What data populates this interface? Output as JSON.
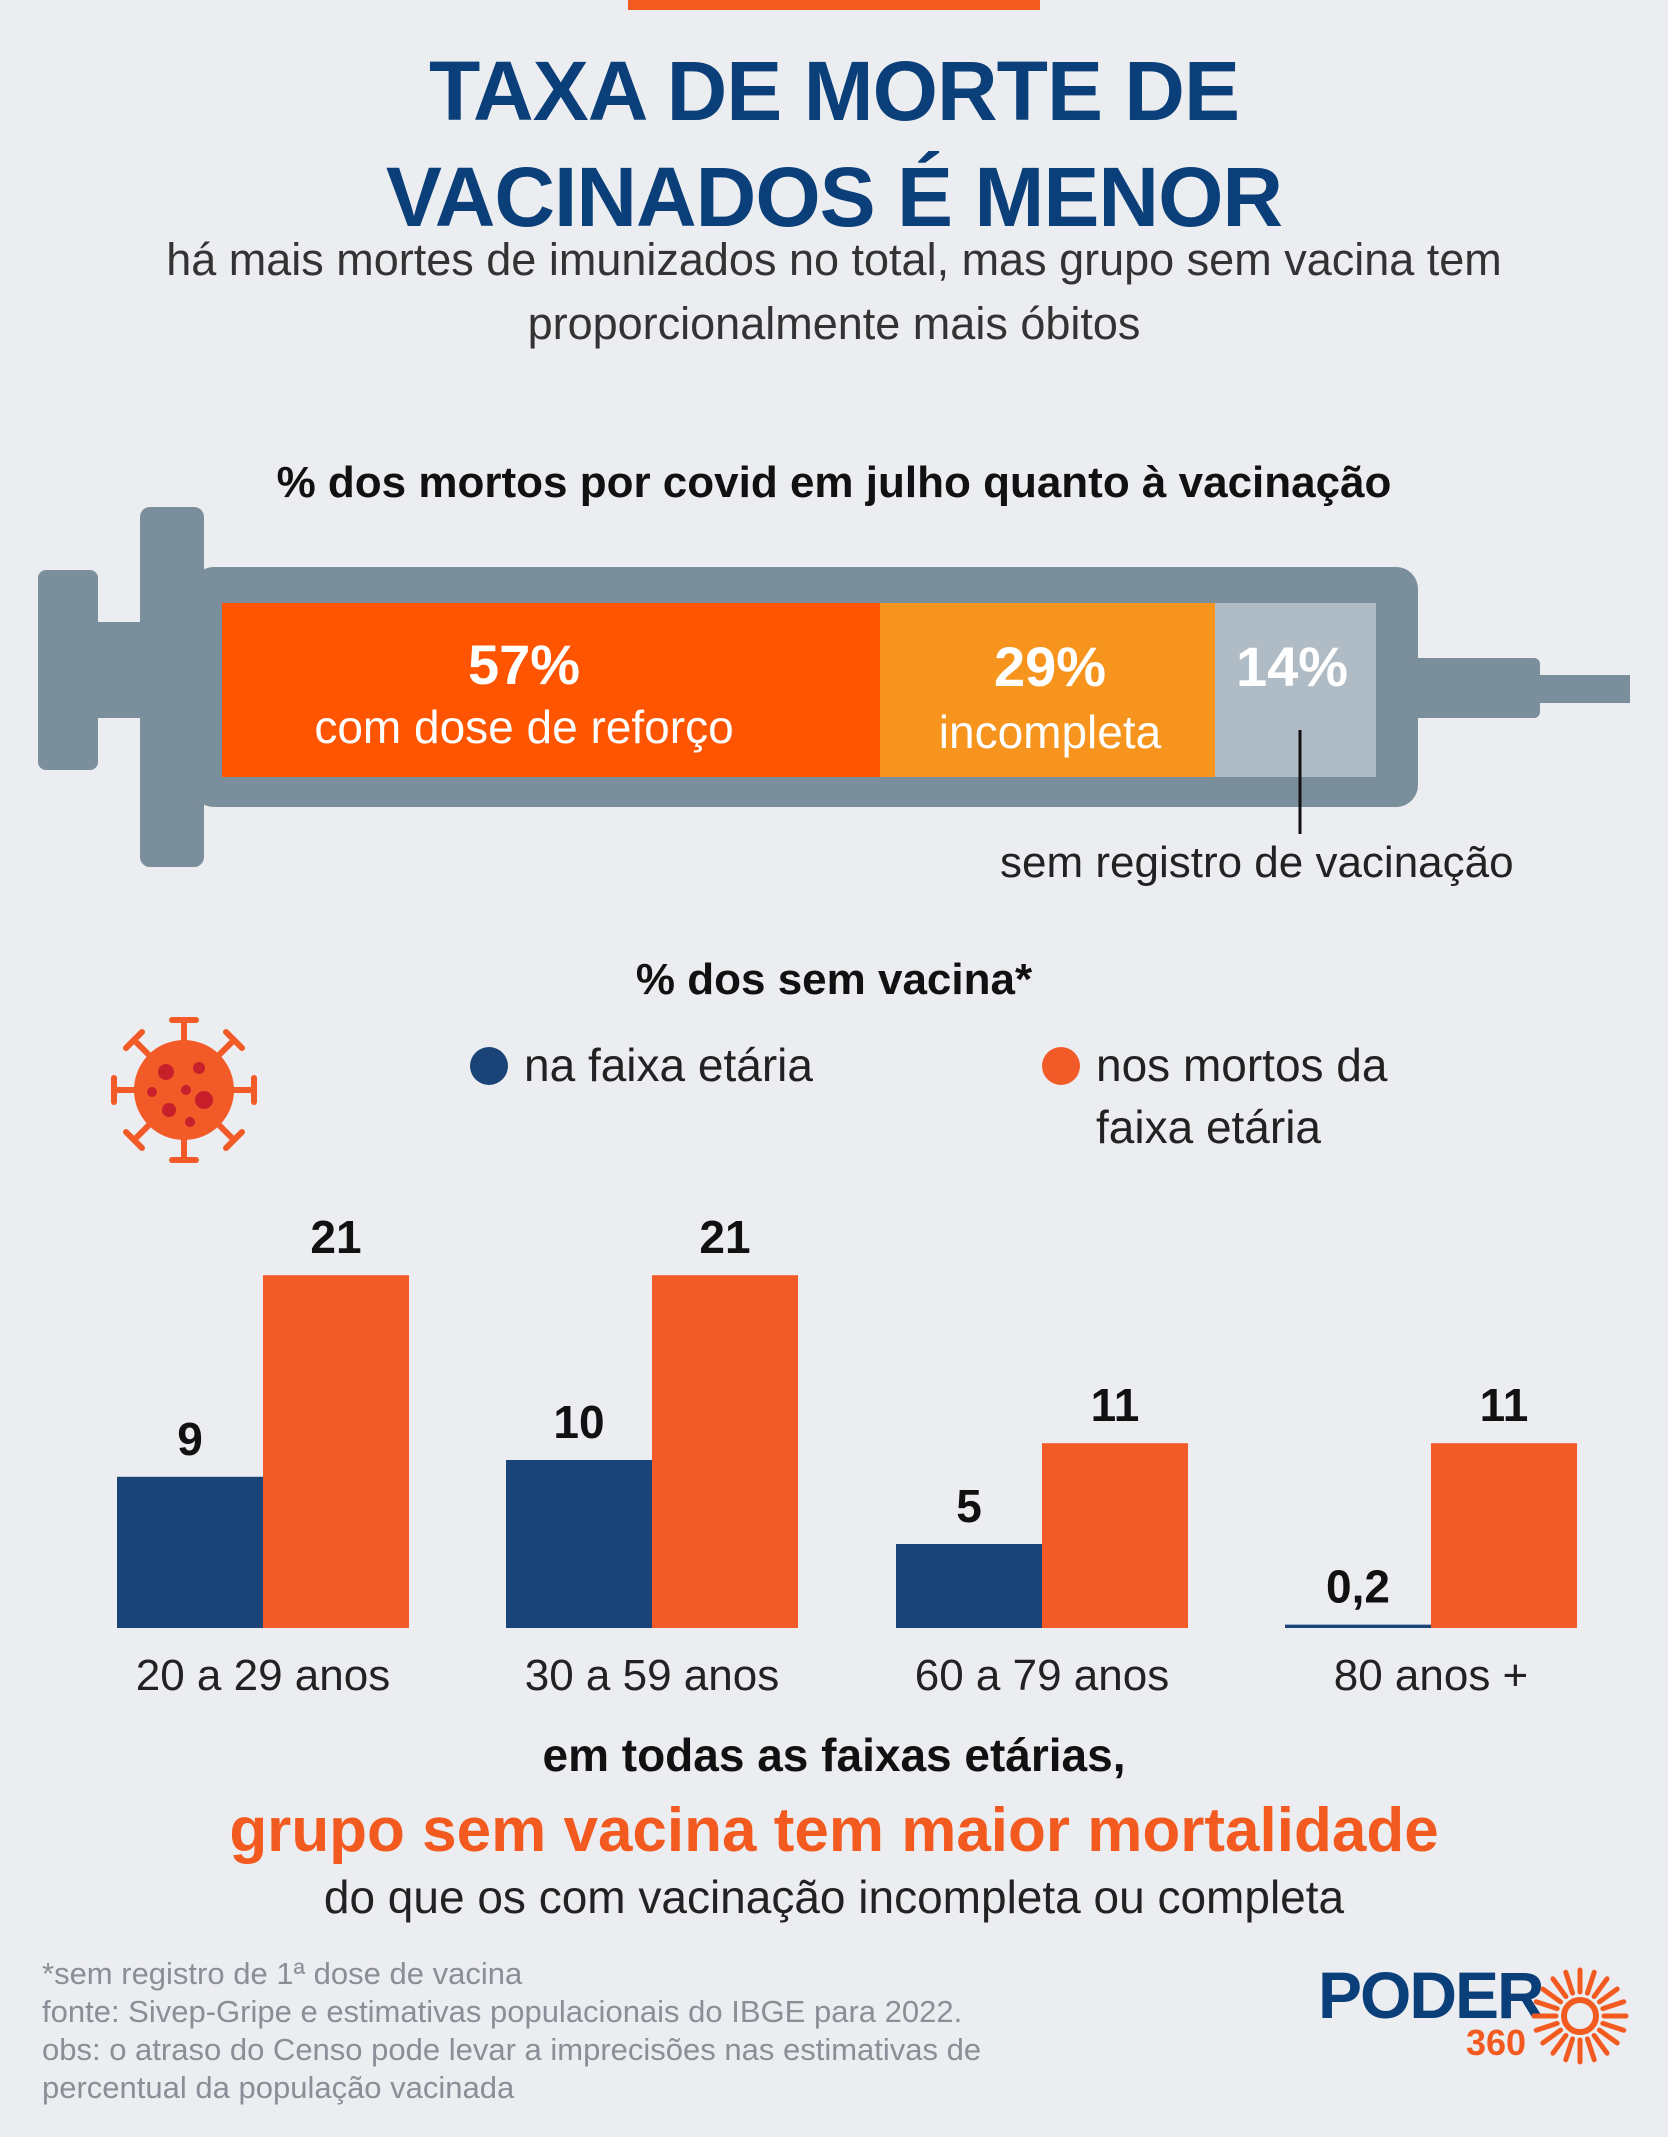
{
  "header": {
    "title_line1": "TAXA DE MORTE DE",
    "title_line2": "VACINADOS É MENOR",
    "subtitle_line1": "há mais mortes de imunizados no total, mas grupo sem vacina tem",
    "subtitle_line2": "proporcionalmente mais óbitos"
  },
  "syringe_chart": {
    "heading": "% dos mortos por covid em julho quanto à vacinação",
    "segments": [
      {
        "value": 57,
        "value_label": "57%",
        "label": "com dose de reforço",
        "color": "#ff5400"
      },
      {
        "value": 29,
        "value_label": "29%",
        "label": "incompleta",
        "color": "#f7941d"
      },
      {
        "value": 14,
        "value_label": "14%",
        "label": "sem registro de vacinação",
        "color": "#b0bcc5"
      }
    ]
  },
  "legend": {
    "heading": "% dos sem vacina*",
    "items": [
      {
        "line1": "na faixa etária",
        "line2": "",
        "color": "#1a4478"
      },
      {
        "line1": "nos mortos da",
        "line2": "faixa etária",
        "color": "#f25a28"
      }
    ]
  },
  "chart_data": {
    "type": "bar",
    "title": "% dos sem vacina*",
    "categories": [
      "20 a 29 anos",
      "30 a 59 anos",
      "60 a 79 anos",
      "80 anos +"
    ],
    "series": [
      {
        "name": "na faixa etária",
        "values": [
          9,
          10,
          5,
          0.2
        ],
        "labels": [
          "9",
          "10",
          "5",
          "0,2"
        ],
        "color": "#1a4478"
      },
      {
        "name": "nos mortos da faixa etária",
        "values": [
          21,
          21,
          11,
          11
        ],
        "labels": [
          "21",
          "21",
          "11",
          "11"
        ],
        "color": "#f25a28"
      }
    ],
    "ylim": [
      0,
      21
    ]
  },
  "conclusion": {
    "line1": "em todas as faixas etárias,",
    "line2": "grupo sem vacina tem maior mortalidade",
    "line3": "do que os com vacinação incompleta ou completa"
  },
  "footnotes": {
    "note": "*sem registro de 1ª dose de vacina",
    "source": "fonte: Sivep-Gripe e estimativas populacionais do IBGE para 2022.",
    "obs_line1": "obs: o atraso do Censo pode levar a imprecisões nas estimativas de",
    "obs_line2": "percentual da população vacinada"
  },
  "logo": {
    "word": "PODER",
    "number": "360",
    "icon": "sun-burst-icon"
  }
}
